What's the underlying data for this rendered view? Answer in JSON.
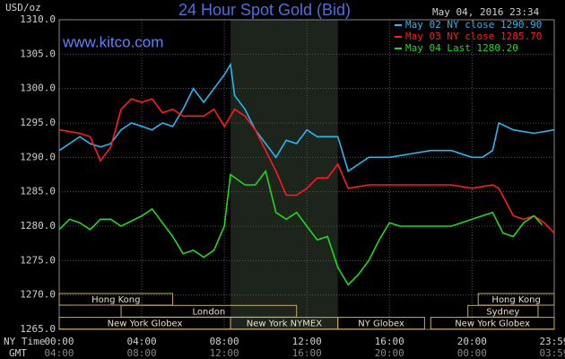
{
  "chart_data": {
    "type": "line",
    "title": "24 Hour Spot Gold (Bid)",
    "y_label": "USD/oz",
    "watermark": "www.kitco.com",
    "timestamp": "May 04, 2016 23:34",
    "x_label": "NY Time",
    "x2_label": "GMT",
    "xlim": [
      0,
      23.983
    ],
    "xticks": [
      {
        "value": 0,
        "label": "00:00"
      },
      {
        "value": 4,
        "label": "04:00"
      },
      {
        "value": 8,
        "label": "08:00"
      },
      {
        "value": 12,
        "label": "12:00"
      },
      {
        "value": 16,
        "label": "16:00"
      },
      {
        "value": 20,
        "label": "20:00"
      },
      {
        "value": 23.983,
        "label": "23:59"
      }
    ],
    "x2ticks": [
      "04:00",
      "08:00",
      "12:00",
      "16:00",
      "20:00",
      "00:00",
      "03:59"
    ],
    "ylim": [
      1265,
      1310
    ],
    "yticks": [
      {
        "value": 1265,
        "label": "1265.0"
      },
      {
        "value": 1270,
        "label": "1270.0"
      },
      {
        "value": 1275,
        "label": "1275.0"
      },
      {
        "value": 1280,
        "label": "1280.0"
      },
      {
        "value": 1285,
        "label": "1285.0"
      },
      {
        "value": 1290,
        "label": "1290.0"
      },
      {
        "value": 1295,
        "label": "1295.0"
      },
      {
        "value": 1300,
        "label": "1300.0"
      },
      {
        "value": 1305,
        "label": "1305.0"
      },
      {
        "value": 1310,
        "label": "1310.0"
      }
    ],
    "grid": true,
    "highlight": {
      "start": 8.3,
      "end": 13.5,
      "color": "#1c241c"
    },
    "sessions": [
      {
        "label": "Hong Kong",
        "row": 0,
        "start": 0,
        "end": 5.5
      },
      {
        "label": "Hong Kong",
        "row": 0,
        "start": 20.3,
        "end": 23.983
      },
      {
        "label": "London",
        "row": 1,
        "start": 3,
        "end": 11.5
      },
      {
        "label": "Sydney",
        "row": 1,
        "start": 19.8,
        "end": 23.2
      },
      {
        "label": "New York Globex",
        "row": 2,
        "start": 0,
        "end": 8.3
      },
      {
        "label": "New York NYMEX",
        "row": 2,
        "start": 8.3,
        "end": 13.5
      },
      {
        "label": "NY Globex",
        "row": 2,
        "start": 13.5,
        "end": 17.7
      },
      {
        "label": "New York Globex",
        "row": 2,
        "start": 18,
        "end": 23.983
      }
    ],
    "series": [
      {
        "name": "May 02 NY close 1290.90",
        "color": "#25b8f2",
        "x": [
          0,
          0.5,
          1,
          1.5,
          2,
          2.5,
          3,
          3.5,
          4,
          4.5,
          5,
          5.5,
          6,
          6.5,
          7,
          7.5,
          8,
          8.3,
          8.5,
          9,
          9.5,
          10,
          10.5,
          11,
          11.5,
          12,
          12.5,
          13,
          13.5,
          14,
          14.5,
          15,
          16,
          17,
          18,
          19,
          20,
          20.5,
          21,
          21.3,
          22,
          23,
          23.983
        ],
        "values": [
          1291,
          1292,
          1293,
          1292,
          1291.5,
          1292,
          1294,
          1295,
          1294.5,
          1294,
          1295,
          1294.5,
          1297,
          1300,
          1298,
          1300,
          1302,
          1303.5,
          1299,
          1297,
          1294,
          1292,
          1290,
          1292.5,
          1292,
          1294,
          1293,
          1293,
          1293,
          1288,
          1289,
          1290,
          1290,
          1290.5,
          1291,
          1291,
          1290,
          1290,
          1291,
          1295,
          1294,
          1293.5,
          1294
        ]
      },
      {
        "name": "May 03 NY close 1285.70",
        "color": "#ff1c1c",
        "x": [
          0,
          1,
          1.5,
          2,
          2.5,
          3,
          3.5,
          4,
          4.5,
          5,
          5.5,
          6,
          7,
          7.5,
          8,
          8.5,
          9,
          9.5,
          10,
          10.5,
          11,
          11.5,
          12,
          12.5,
          13,
          13.5,
          14,
          15,
          16,
          17,
          18,
          19,
          20,
          21,
          21.3,
          22,
          22.5,
          23,
          23.5,
          23.983
        ],
        "values": [
          1294,
          1293.5,
          1293,
          1289.5,
          1291.5,
          1297,
          1298.5,
          1298,
          1298.5,
          1296.5,
          1297,
          1296,
          1296,
          1297,
          1294.5,
          1297,
          1296,
          1294,
          1291,
          1288,
          1284.5,
          1284.5,
          1285.5,
          1287,
          1287,
          1289,
          1285.5,
          1286,
          1286,
          1286,
          1286,
          1286,
          1285.5,
          1286,
          1285.5,
          1281.5,
          1281,
          1281.5,
          1280.5,
          1279
        ]
      },
      {
        "name": "May 04 Last 1280.20",
        "color": "#20d820",
        "x": [
          0,
          0.5,
          1,
          1.5,
          2,
          2.5,
          3,
          4,
          4.5,
          5,
          5.5,
          6,
          6.5,
          7,
          7.5,
          8,
          8.3,
          9,
          9.5,
          10,
          10.5,
          11,
          11.5,
          12,
          12.5,
          13,
          13.5,
          14,
          14.5,
          15,
          15.5,
          16,
          16.5,
          17,
          18,
          19,
          20,
          21,
          21.5,
          22,
          22.5,
          23,
          23.4
        ],
        "values": [
          1279.5,
          1281,
          1280.5,
          1279.5,
          1281,
          1281,
          1280,
          1281.5,
          1282.5,
          1280.5,
          1278.5,
          1276,
          1276.5,
          1275.5,
          1276.5,
          1280,
          1287.5,
          1286,
          1286,
          1288,
          1282,
          1281,
          1282,
          1280,
          1278,
          1278.5,
          1274,
          1271.5,
          1273,
          1275,
          1278,
          1280.5,
          1280,
          1280,
          1280,
          1280,
          1281,
          1282,
          1279,
          1278.5,
          1280.5,
          1281.5,
          1280.2
        ]
      }
    ]
  }
}
